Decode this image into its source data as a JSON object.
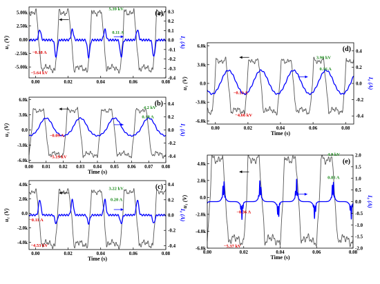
{
  "chart_data": [
    {
      "panel": "(a)",
      "type": "line",
      "xlabel": "",
      "ylabel": "u₁ (V)",
      "y2label": "I₁ (A)",
      "xlim": [
        -0.004,
        0.08
      ],
      "ylim": [
        -7000,
        6000
      ],
      "y2lim": [
        -0.4,
        0.35
      ],
      "xticks": [
        0.0,
        0.02,
        0.04,
        0.06,
        0.08
      ],
      "xtick_labels": [
        "0.00",
        "0.02",
        "0.04",
        "0.06",
        "0.08"
      ],
      "yticks": [
        -5000,
        -2500,
        0,
        2500,
        5000
      ],
      "ytick_labels": [
        "-5.00k",
        "-2.50k",
        "0.00",
        "2.50k",
        "5.00k"
      ],
      "y2ticks": [
        -0.4,
        -0.3,
        -0.2,
        -0.1,
        0.0,
        0.1,
        0.2,
        0.3
      ],
      "y2tick_labels": [
        "-0.4",
        "-0.3",
        "-0.2",
        "-0.1",
        "0.0",
        "0.1",
        "0.2",
        "0.3"
      ],
      "series": [
        {
          "axis": "left",
          "color": "#555555",
          "amplitude_pos": 5390,
          "amplitude_neg": -5640,
          "period": 0.02,
          "phase": -0.008,
          "shape": "square"
        },
        {
          "axis": "right",
          "color": "#0000ff",
          "amplitude_pos": 0.11,
          "amplitude_neg": -0.18,
          "period": 0.02,
          "phase": -0.003,
          "shape": "pulse"
        }
      ],
      "annotations": [
        {
          "text": "5.39 kV",
          "color": "green",
          "x": 0.045,
          "y": 5390
        },
        {
          "text": "0.11 A",
          "color": "green",
          "x": 0.047,
          "y": 1100
        },
        {
          "text": "−0.18 A",
          "color": "red",
          "x": -0.002,
          "y": -2600
        },
        {
          "text": "−5.64 kV",
          "color": "red",
          "x": -0.003,
          "y": -6300
        }
      ]
    },
    {
      "panel": "(b)",
      "type": "line",
      "xlabel": "Time (s)",
      "ylabel": "u₁ (V)",
      "y2label": "I₁ (A)",
      "xlim": [
        0.0,
        0.08
      ],
      "ylim": [
        -6500,
        6500
      ],
      "y2lim": [
        -0.5,
        0.5
      ],
      "xticks": [
        0.0,
        0.01,
        0.02,
        0.03,
        0.04,
        0.05,
        0.06,
        0.07,
        0.08
      ],
      "xtick_labels": [
        "0.00",
        "0.01",
        "0.02",
        "0.03",
        "0.04",
        "0.05",
        "0.06",
        "0.07",
        "0.08"
      ],
      "yticks": [
        -6000,
        -3000,
        0,
        3000,
        6000
      ],
      "ytick_labels": [
        "-6.0k",
        "-3.0k",
        "0.0",
        "3.0k",
        "6.0k"
      ],
      "y2ticks": [
        -0.4,
        -0.2,
        0.0,
        0.2,
        0.4
      ],
      "y2tick_labels": [
        "-0.4",
        "-0.2",
        "0.0",
        "0.2",
        "0.4"
      ],
      "series": [
        {
          "axis": "left",
          "color": "#555555",
          "amplitude_pos": 4200,
          "amplitude_neg": -5190,
          "period": 0.02,
          "phase": 0.0,
          "shape": "square"
        },
        {
          "axis": "right",
          "color": "#0000ff",
          "amplitude_pos": 0.18,
          "amplitude_neg": -0.09,
          "period": 0.02,
          "phase": 0.005,
          "shape": "sine"
        }
      ],
      "annotations": [
        {
          "text": "4.2 kV",
          "color": "green",
          "x": 0.067,
          "y": 4200
        },
        {
          "text": "0.18 A",
          "color": "green",
          "x": 0.066,
          "y": 2300
        },
        {
          "text": "−0.09 A",
          "color": "red",
          "x": 0.012,
          "y": -1400
        },
        {
          "text": "−5.19 kV",
          "color": "red",
          "x": 0.012,
          "y": -5600
        }
      ]
    },
    {
      "panel": "(c)",
      "type": "line",
      "xlabel": "Time (s)",
      "ylabel": "u₁ (V)",
      "y2label": "I₀ (A)",
      "xlim": [
        -0.004,
        0.08
      ],
      "ylim": [
        -5000,
        4500
      ],
      "y2lim": [
        -0.45,
        0.45
      ],
      "xticks": [
        0.0,
        0.02,
        0.04,
        0.06,
        0.08
      ],
      "xtick_labels": [
        "0.00",
        "0.02",
        "0.04",
        "0.06",
        "0.08"
      ],
      "yticks": [
        -4000,
        -2000,
        0,
        2000,
        4000
      ],
      "ytick_labels": [
        "-4.0k",
        "-2.0k",
        "0.0",
        "2.0k",
        "4.0k"
      ],
      "y2ticks": [
        -0.4,
        -0.2,
        0.0,
        0.2,
        0.4
      ],
      "y2tick_labels": [
        "-0.4",
        "-0.2",
        "0.0",
        "0.2",
        "0.4"
      ],
      "series": [
        {
          "axis": "left",
          "color": "#555555",
          "amplitude_pos": 3220,
          "amplitude_neg": -4530,
          "period": 0.02,
          "phase": -0.008,
          "shape": "square"
        },
        {
          "axis": "right",
          "color": "#0000ff",
          "amplitude_pos": 0.2,
          "amplitude_neg": -0.11,
          "period": 0.02,
          "phase": -0.003,
          "shape": "pulse"
        }
      ],
      "annotations": [
        {
          "text": "3.22 kV",
          "color": "green",
          "x": 0.045,
          "y": 3220
        },
        {
          "text": "0.20 A",
          "color": "green",
          "x": 0.046,
          "y": 1700
        },
        {
          "text": "−0.11 A",
          "color": "red",
          "x": -0.004,
          "y": -1100
        },
        {
          "text": "−4.53 kV",
          "color": "red",
          "x": -0.003,
          "y": -4600
        }
      ]
    },
    {
      "panel": "(d)",
      "type": "line",
      "xlabel": "Time (s)",
      "ylabel": "u₁ (V)",
      "y2label": "I₀ (A)",
      "xlim": [
        -0.005,
        0.085
      ],
      "ylim": [
        -6500,
        6500
      ],
      "y2lim": [
        -0.5,
        0.5
      ],
      "xticks": [
        0.0,
        0.02,
        0.04,
        0.06,
        0.08
      ],
      "xtick_labels": [
        "0.00",
        "0.02",
        "0.04",
        "0.06",
        "0.08"
      ],
      "yticks": [
        -6000,
        -3000,
        0,
        3000,
        6000
      ],
      "ytick_labels": [
        "-6.0k",
        "-3.0k",
        "0.0",
        "3.0k",
        "6.0k"
      ],
      "y2ticks": [
        -0.4,
        -0.2,
        0.0,
        0.2,
        0.4
      ],
      "y2tick_labels": [
        "-0.4",
        "-0.2",
        "0.0",
        "0.2",
        "0.4"
      ],
      "series": [
        {
          "axis": "left",
          "color": "#555555",
          "amplitude_pos": 3900,
          "amplitude_neg": -4660,
          "period": 0.02,
          "phase": -0.002,
          "shape": "square"
        },
        {
          "axis": "right",
          "color": "#0000ff",
          "amplitude_pos": 0.16,
          "amplitude_neg": -0.13,
          "period": 0.02,
          "phase": 0.003,
          "shape": "sine"
        }
      ],
      "annotations": [
        {
          "text": "3.90 kV",
          "color": "green",
          "x": 0.062,
          "y": 3900
        },
        {
          "text": "0.16 A",
          "color": "green",
          "x": 0.064,
          "y": 2100
        },
        {
          "text": "−0.13 A",
          "color": "red",
          "x": 0.011,
          "y": -1700
        },
        {
          "text": "−4.66 kV",
          "color": "red",
          "x": 0.012,
          "y": -5300
        }
      ]
    },
    {
      "panel": "(e)",
      "type": "line",
      "xlabel": "Time (s)",
      "ylabel": "u₁ (V)",
      "y2label": "I₀ (A)",
      "xlim": [
        0.0,
        0.08
      ],
      "ylim": [
        -6000,
        5000
      ],
      "y2lim": [
        -2.0,
        2.0
      ],
      "xticks": [
        0.0,
        0.02,
        0.04,
        0.06,
        0.08
      ],
      "xtick_labels": [
        "0.00",
        "0.02",
        "0.04",
        "0.06",
        "0.08"
      ],
      "yticks": [
        -6000,
        -4000,
        -2000,
        0,
        2000,
        4000
      ],
      "ytick_labels": [
        "-6.0k",
        "-4.0k",
        "-2.0k",
        "0.0",
        "2.0k",
        "4.0k"
      ],
      "y2ticks": [
        -2.0,
        -1.5,
        -1.0,
        -0.5,
        0.0,
        0.5,
        1.0,
        1.5,
        2.0
      ],
      "y2tick_labels": [
        "-2.0",
        "-1.5",
        "-1.0",
        "-0.5",
        "0.0",
        "0.5",
        "1.0",
        "1.5",
        "2.0"
      ],
      "series": [
        {
          "axis": "left",
          "color": "#555555",
          "amplitude_pos": 4900,
          "amplitude_neg": -5370,
          "period": 0.02,
          "phase": 0.0,
          "shape": "square"
        },
        {
          "axis": "right",
          "color": "#0000ff",
          "amplitude_pos": 0.83,
          "amplitude_neg": -0.36,
          "period": 0.02,
          "phase": 0.003,
          "shape": "spiky"
        }
      ],
      "annotations": [
        {
          "text": "4.9 kV",
          "color": "green",
          "x": 0.066,
          "y": 4900
        },
        {
          "text": "0.83 A",
          "color": "green",
          "x": 0.066,
          "y": 2200
        },
        {
          "text": "−0.36 A",
          "color": "red",
          "x": 0.016,
          "y": -1900
        },
        {
          "text": "−5.37 kV",
          "color": "red",
          "x": 0.009,
          "y": -5900
        }
      ]
    }
  ]
}
